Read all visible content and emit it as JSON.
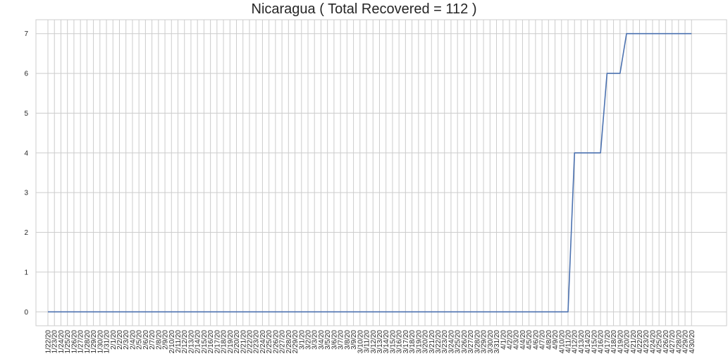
{
  "chart_data": {
    "type": "line",
    "title": "Nicaragua ( Total Recovered = 112 )",
    "xlabel": "",
    "ylabel": "",
    "ylim": [
      -0.35,
      7.35
    ],
    "yticks": [
      0,
      1,
      2,
      3,
      4,
      5,
      6,
      7
    ],
    "grid": true,
    "line_color": "#4c72b0",
    "x": [
      "1/22/20",
      "1/23/20",
      "1/24/20",
      "1/25/20",
      "1/26/20",
      "1/27/20",
      "1/28/20",
      "1/29/20",
      "1/30/20",
      "1/31/20",
      "2/1/20",
      "2/2/20",
      "2/3/20",
      "2/4/20",
      "2/5/20",
      "2/6/20",
      "2/7/20",
      "2/8/20",
      "2/9/20",
      "2/10/20",
      "2/11/20",
      "2/12/20",
      "2/13/20",
      "2/14/20",
      "2/15/20",
      "2/16/20",
      "2/17/20",
      "2/18/20",
      "2/19/20",
      "2/20/20",
      "2/21/20",
      "2/22/20",
      "2/23/20",
      "2/24/20",
      "2/25/20",
      "2/26/20",
      "2/27/20",
      "2/28/20",
      "2/29/20",
      "3/1/20",
      "3/2/20",
      "3/3/20",
      "3/4/20",
      "3/5/20",
      "3/6/20",
      "3/7/20",
      "3/8/20",
      "3/9/20",
      "3/10/20",
      "3/11/20",
      "3/12/20",
      "3/13/20",
      "3/14/20",
      "3/15/20",
      "3/16/20",
      "3/17/20",
      "3/18/20",
      "3/19/20",
      "3/20/20",
      "3/21/20",
      "3/22/20",
      "3/23/20",
      "3/24/20",
      "3/25/20",
      "3/26/20",
      "3/27/20",
      "3/28/20",
      "3/29/20",
      "3/30/20",
      "3/31/20",
      "4/1/20",
      "4/2/20",
      "4/3/20",
      "4/4/20",
      "4/5/20",
      "4/6/20",
      "4/7/20",
      "4/8/20",
      "4/9/20",
      "4/10/20",
      "4/11/20",
      "4/12/20",
      "4/13/20",
      "4/14/20",
      "4/15/20",
      "4/16/20",
      "4/17/20",
      "4/18/20",
      "4/19/20",
      "4/20/20",
      "4/21/20",
      "4/22/20",
      "4/23/20",
      "4/24/20",
      "4/25/20",
      "4/26/20",
      "4/27/20",
      "4/28/20",
      "4/29/20",
      "4/30/20"
    ],
    "series": [
      {
        "values": [
          0,
          0,
          0,
          0,
          0,
          0,
          0,
          0,
          0,
          0,
          0,
          0,
          0,
          0,
          0,
          0,
          0,
          0,
          0,
          0,
          0,
          0,
          0,
          0,
          0,
          0,
          0,
          0,
          0,
          0,
          0,
          0,
          0,
          0,
          0,
          0,
          0,
          0,
          0,
          0,
          0,
          0,
          0,
          0,
          0,
          0,
          0,
          0,
          0,
          0,
          0,
          0,
          0,
          0,
          0,
          0,
          0,
          0,
          0,
          0,
          0,
          0,
          0,
          0,
          0,
          0,
          0,
          0,
          0,
          0,
          0,
          0,
          0,
          0,
          0,
          0,
          0,
          0,
          0,
          0,
          0,
          4,
          4,
          4,
          4,
          4,
          6,
          6,
          6,
          7,
          7,
          7,
          7,
          7,
          7,
          7,
          7,
          7,
          7,
          7
        ]
      }
    ]
  }
}
